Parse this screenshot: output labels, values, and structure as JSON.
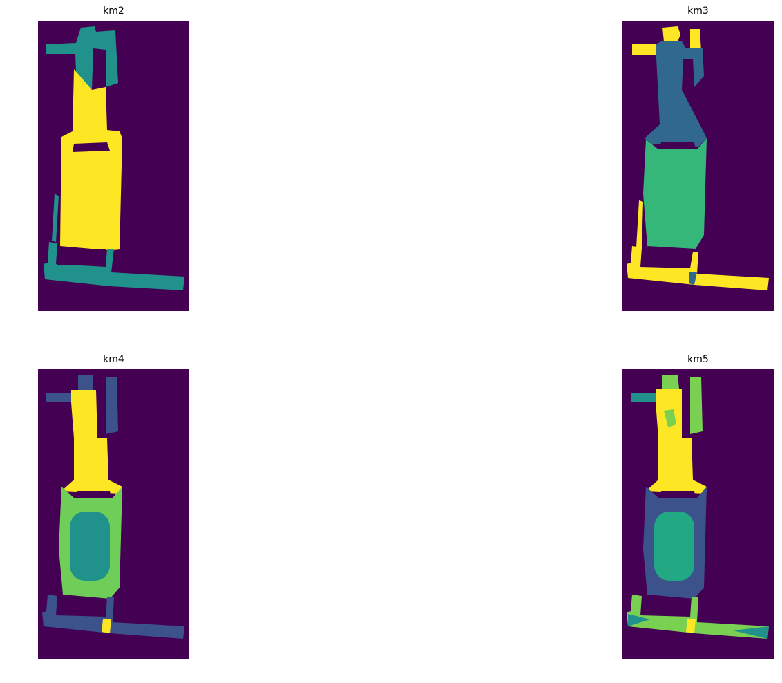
{
  "figure": {
    "panels": [
      {
        "title": "km2"
      },
      {
        "title": "km3"
      },
      {
        "title": "km4"
      },
      {
        "title": "km5"
      }
    ]
  },
  "colors": {
    "background": "#440154",
    "dark_blue": "#3b528b",
    "blue": "#31688e",
    "teal": "#21918c",
    "teal2": "#23a884",
    "green": "#35b779",
    "light_green": "#6ece58",
    "lime": "#7ad151",
    "yellow": "#fde725"
  }
}
